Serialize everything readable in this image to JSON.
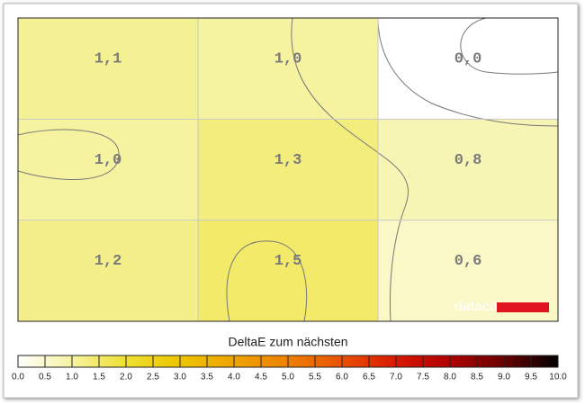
{
  "chart_data": {
    "type": "heatmap",
    "values": [
      [
        1.1,
        1.0,
        0.0
      ],
      [
        1.0,
        1.3,
        0.8
      ],
      [
        1.2,
        1.5,
        0.6
      ]
    ],
    "value_labels": [
      [
        "1,1",
        "1,0",
        "0,0"
      ],
      [
        "1,0",
        "1,3",
        "0,8"
      ],
      [
        "1,2",
        "1,5",
        "0,6"
      ]
    ],
    "watermark": "datacolor",
    "grid": true,
    "colorscale": [
      "#ffffff",
      "#f5f3a0",
      "#efe030",
      "#edc400",
      "#eea400",
      "#ee8000",
      "#ea5000",
      "#d81800",
      "#b00000",
      "#680000",
      "#000000"
    ],
    "colorbar": {
      "title": "DeltaE zum nächsten",
      "lim": [
        0,
        10
      ],
      "ticks": [
        {
          "value": 0,
          "label": "0.0"
        },
        {
          "value": 0.5,
          "label": "0.5"
        },
        {
          "value": 1,
          "label": "1.0"
        },
        {
          "value": 1.5,
          "label": "1.5"
        },
        {
          "value": 2,
          "label": "2.0"
        },
        {
          "value": 2.5,
          "label": "2.5"
        },
        {
          "value": 3,
          "label": "3.0"
        },
        {
          "value": 3.5,
          "label": "3.5"
        },
        {
          "value": 4,
          "label": "4.0"
        },
        {
          "value": 4.5,
          "label": "4.5"
        },
        {
          "value": 5,
          "label": "5.0"
        },
        {
          "value": 5.5,
          "label": "5.5"
        },
        {
          "value": 6,
          "label": "6.0"
        },
        {
          "value": 6.5,
          "label": "6.5"
        },
        {
          "value": 7,
          "label": "7.0"
        },
        {
          "value": 7.5,
          "label": "7.5"
        },
        {
          "value": 8,
          "label": "8.0"
        },
        {
          "value": 8.5,
          "label": "8.5"
        },
        {
          "value": 9,
          "label": "9.0"
        },
        {
          "value": 9.5,
          "label": "9.5"
        },
        {
          "value": 10,
          "label": "10.0"
        }
      ]
    }
  }
}
